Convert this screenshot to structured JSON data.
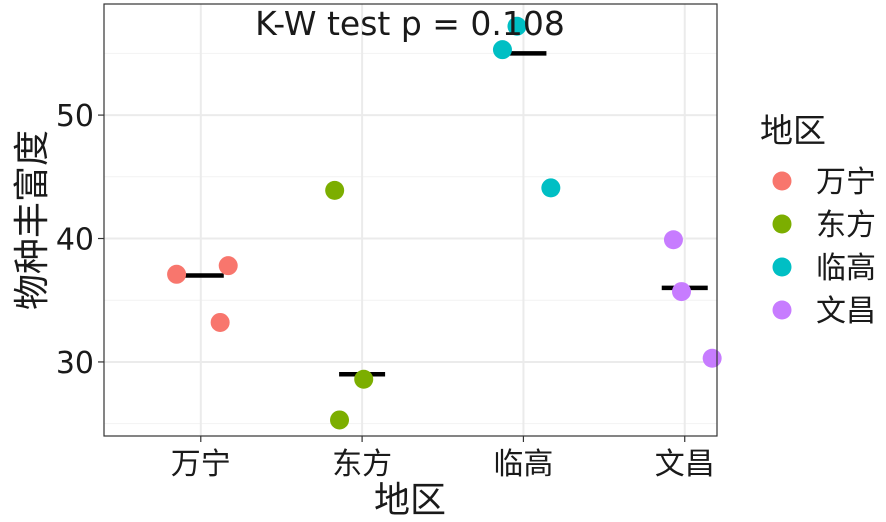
{
  "chart_data": {
    "type": "scatter",
    "annotation": "K-W test p = 0.108",
    "xlabel": "地区",
    "ylabel": "物种丰富度",
    "categories": [
      "万宁",
      "东方",
      "临高",
      "文昌"
    ],
    "ylim": [
      24,
      59
    ],
    "yticks": [
      30,
      40,
      50
    ],
    "grid": true,
    "legend": {
      "title": "地区",
      "position": "right",
      "entries": [
        "万宁",
        "东方",
        "临高",
        "文昌"
      ]
    },
    "colors": [
      "#F8766D",
      "#7CAE00",
      "#00BFC4",
      "#C77CFF"
    ],
    "series": [
      {
        "name": "万宁",
        "points": [
          {
            "x": 0.85,
            "y": 37.1
          },
          {
            "x": 1.17,
            "y": 37.8
          },
          {
            "x": 1.12,
            "y": 33.2
          }
        ],
        "median": 37.0
      },
      {
        "name": "东方",
        "points": [
          {
            "x": 1.83,
            "y": 43.9
          },
          {
            "x": 2.01,
            "y": 28.6
          },
          {
            "x": 1.86,
            "y": 25.3
          }
        ],
        "median": 29.0
      },
      {
        "name": "临高",
        "points": [
          {
            "x": 2.96,
            "y": 57.2
          },
          {
            "x": 2.87,
            "y": 55.3
          },
          {
            "x": 3.17,
            "y": 44.1
          }
        ],
        "median": 55.0
      },
      {
        "name": "文昌",
        "points": [
          {
            "x": 3.93,
            "y": 39.9
          },
          {
            "x": 3.98,
            "y": 35.7
          },
          {
            "x": 4.17,
            "y": 30.3
          }
        ],
        "median": 36.0
      }
    ]
  }
}
